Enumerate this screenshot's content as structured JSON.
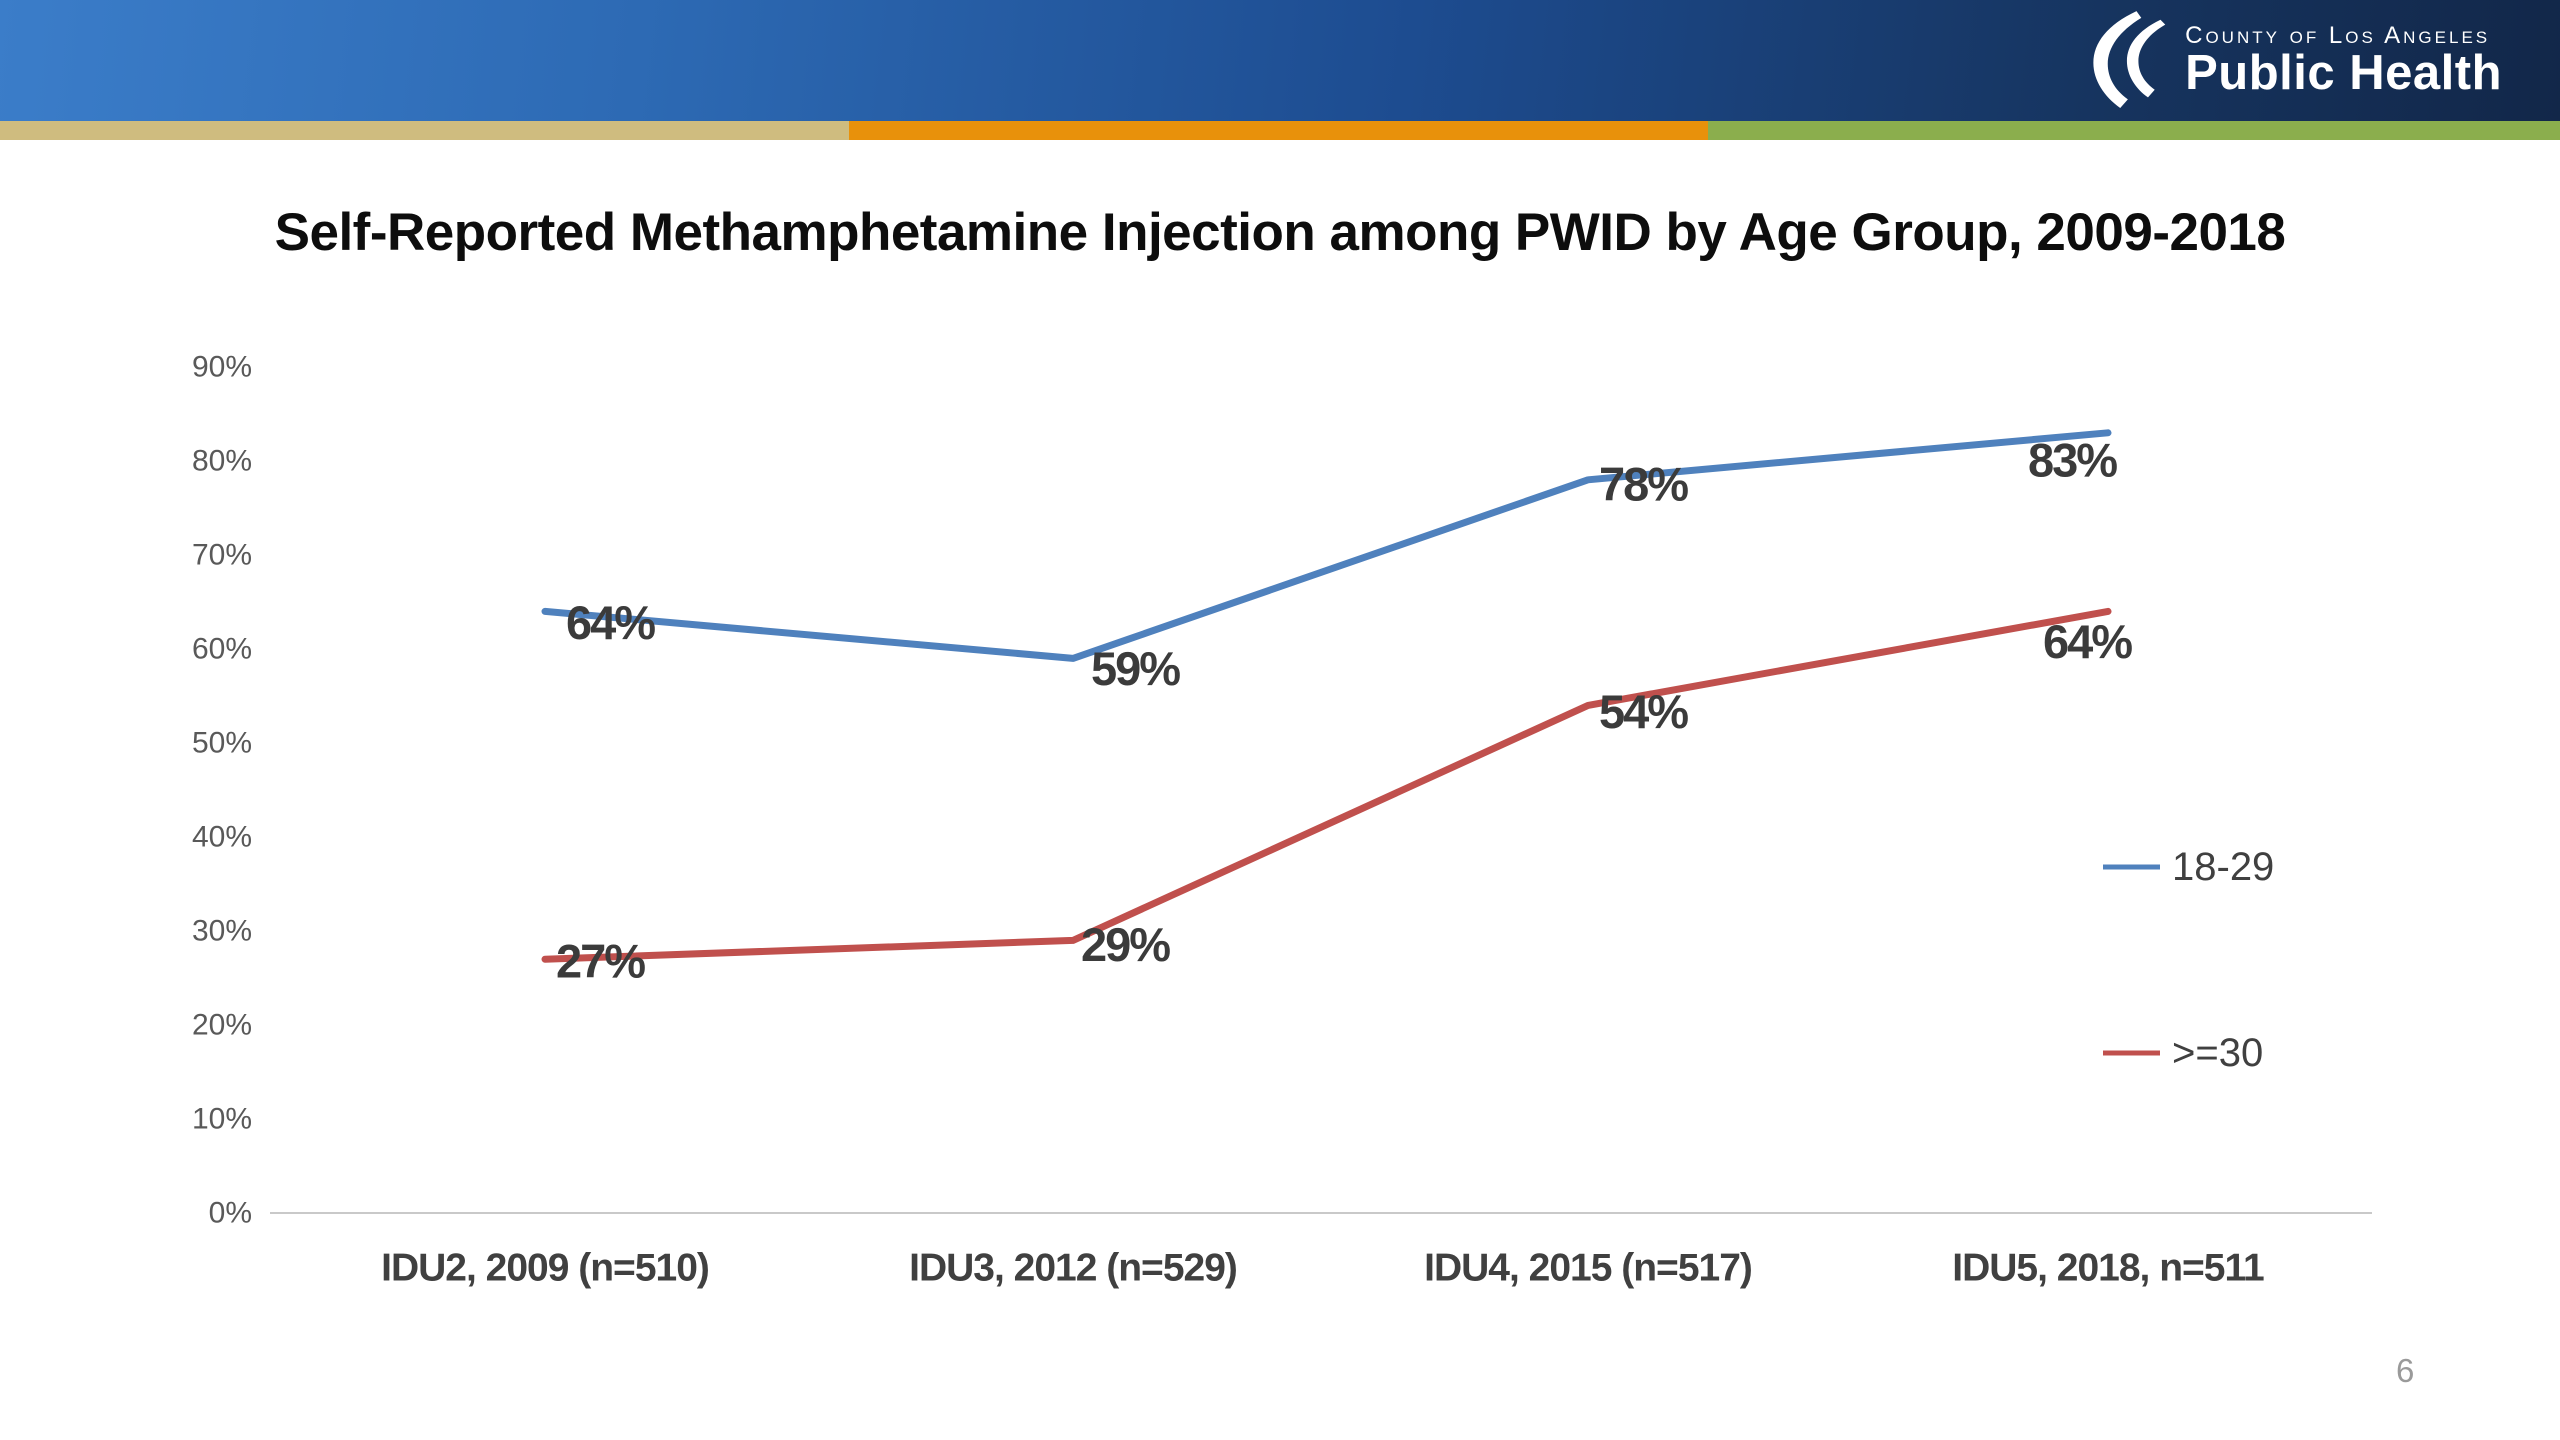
{
  "header": {
    "org_line1": "County of Los Angeles",
    "org_line2": "Public Health",
    "banner_gradient": [
      "#3B7DC9",
      "#2D6AB4",
      "#1D4C90",
      "#16345F",
      "#122749"
    ],
    "stripe_segments": [
      {
        "name": "tan",
        "color": "#CFBC7F",
        "from": 0,
        "to": 849
      },
      {
        "name": "orange",
        "color": "#E8910B",
        "from": 849,
        "to": 1708
      },
      {
        "name": "green",
        "color": "#8BAE4D",
        "from": 1708,
        "to": 2560
      }
    ]
  },
  "title": "Self-Reported Methamphetamine Injection among PWID by Age Group, 2009-2018",
  "page": {
    "number": "6"
  },
  "chart_data": {
    "type": "line",
    "title": "Self-Reported Methamphetamine Injection among PWID by Age Group, 2009-2018",
    "categories": [
      "IDU2, 2009 (n=510)",
      "IDU3, 2012 (n=529)",
      "IDU4, 2015 (n=517)",
      "IDU5, 2018, n=511"
    ],
    "series": [
      {
        "name": "18-29",
        "color": "#4F81BD",
        "values": [
          64,
          59,
          78,
          83
        ],
        "point_labels": [
          "64%",
          "59%",
          "78%",
          "83%"
        ]
      },
      {
        "name": ">=30",
        "color": "#C0504D",
        "values": [
          27,
          29,
          54,
          64
        ],
        "point_labels": [
          "27%",
          "29%",
          "54%",
          "64%"
        ]
      }
    ],
    "y_axis": {
      "min": 0,
      "max": 90,
      "tick_step": 10,
      "tick_labels": [
        "0%",
        "10%",
        "20%",
        "30%",
        "40%",
        "50%",
        "60%",
        "70%",
        "80%",
        "90%"
      ]
    },
    "grid": false,
    "legend_position": "right",
    "axis_color": "#C9C9C9",
    "tick_label_color": "#595959",
    "category_label_color": "#404040",
    "data_label_color": "#3B3B3B",
    "legend_text_color": "#404040"
  }
}
